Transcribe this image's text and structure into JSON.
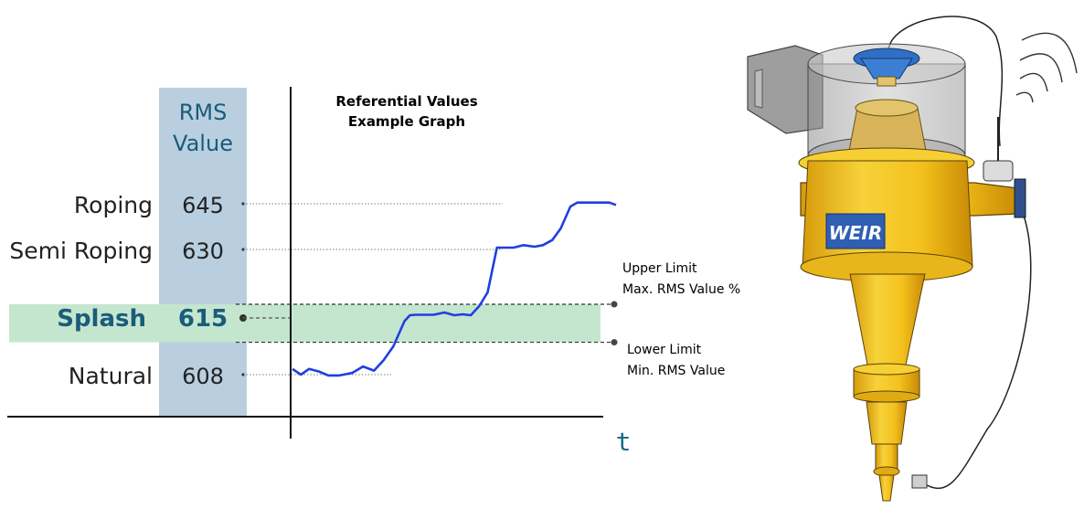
{
  "colors": {
    "rms_column": "#b9cfe0",
    "splash_band": "#c4e6cf",
    "series_line": "#1f3fe0",
    "accent_text": "#1a5c7a",
    "cyclone_yellow": "#f2c11d",
    "axis": "#111111"
  },
  "chart_data": {
    "type": "line",
    "title": "Referential  Values",
    "subtitle": "Example Graph",
    "xlabel": "t",
    "column_header": [
      "RMS",
      "Value"
    ],
    "ylim": [
      600,
      653
    ],
    "xlim": [
      0,
      100
    ],
    "levels": [
      {
        "state": "Roping",
        "value": 645,
        "value_label": "645",
        "highlight": false
      },
      {
        "state": "Semi Roping",
        "value": 630,
        "value_label": "630",
        "highlight": false
      },
      {
        "state": "Splash",
        "value": 615,
        "value_label": "615",
        "highlight": true
      },
      {
        "state": "Natural",
        "value": 608,
        "value_label": "608",
        "highlight": false
      }
    ],
    "band": {
      "lower": 612,
      "upper": 618
    },
    "annotations": {
      "upper": [
        "Upper Limit",
        "Max. RMS Value %"
      ],
      "lower": [
        "Lower Limit",
        "Min. RMS Value"
      ]
    },
    "series": [
      {
        "x": [
          0,
          2.6,
          5.1,
          8.1,
          11.1,
          14.5,
          18.4,
          21.8,
          25.2,
          28.2,
          31.2,
          34.6,
          36.3,
          38.0,
          41.0,
          43.6,
          47.0,
          50.0,
          52.6,
          55.1,
          57.7,
          60.3,
          63.2,
          65.8,
          68.4,
          71.4,
          74.8,
          77.4,
          80.3,
          82.9,
          85.9,
          88.0,
          91.5,
          94.9,
          97.9,
          100
        ],
        "y": [
          608.7,
          608.0,
          608.7,
          608.4,
          607.9,
          607.9,
          608.2,
          609.0,
          608.5,
          609.8,
          611.5,
          614.6,
          615.6,
          615.7,
          615.7,
          615.7,
          616.2,
          615.6,
          615.8,
          615.6,
          617.6,
          620.6,
          630.6,
          630.6,
          630.6,
          631.4,
          630.9,
          631.4,
          633.1,
          636.9,
          644.1,
          645.4,
          645.4,
          645.4,
          645.4,
          644.6
        ]
      }
    ]
  }
}
